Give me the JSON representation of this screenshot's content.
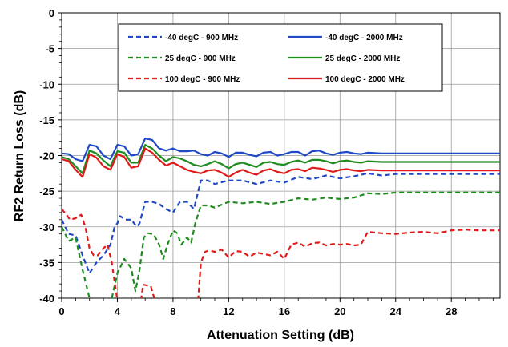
{
  "chart_data": {
    "type": "line",
    "xlabel": "Attenuation Setting (dB)",
    "ylabel": "RF2 Return Loss (dB)",
    "xlim": [
      0,
      31.5
    ],
    "ylim": [
      -40,
      0
    ],
    "xticks": [
      0,
      4,
      8,
      12,
      16,
      20,
      24,
      28
    ],
    "yticks": [
      0,
      -5,
      -10,
      -15,
      -20,
      -25,
      -30,
      -35,
      -40
    ],
    "grid": true,
    "legend_position": "top-center",
    "series": [
      {
        "name": "-40 degC - 900 MHz",
        "color": "#1f49c7",
        "dash": true,
        "x": [
          0,
          0.5,
          1,
          1.5,
          2,
          2.5,
          3,
          3.5,
          3.8,
          4,
          4.2,
          4.6,
          5,
          5.4,
          5.6,
          5.8,
          6,
          6.5,
          7,
          7.5,
          8,
          8.5,
          9,
          9.5,
          10,
          10.5,
          11,
          12,
          13,
          14,
          15,
          16,
          17,
          18,
          19,
          20,
          21,
          22,
          23,
          24,
          25,
          26,
          27,
          28,
          29,
          30,
          31.5
        ],
        "y": [
          -29,
          -31,
          -31.2,
          -34,
          -36.5,
          -35,
          -34,
          -32.5,
          -30,
          -29.5,
          -28.5,
          -29,
          -29,
          -30,
          -29.5,
          -28,
          -26.5,
          -26.5,
          -26.8,
          -27.5,
          -28,
          -26.5,
          -26.5,
          -27.5,
          -23.5,
          -23.5,
          -24,
          -23.5,
          -23.5,
          -24,
          -23.5,
          -23.8,
          -23,
          -23.3,
          -22.8,
          -23.2,
          -22.9,
          -22.5,
          -22.8,
          -22.6,
          -22.6,
          -22.6,
          -22.6,
          -22.6,
          -22.6,
          -22.6,
          -22.6
        ]
      },
      {
        "name": "-40 degC - 2000 MHz",
        "color": "#1f49c7",
        "dash": false,
        "x": [
          0,
          0.5,
          1,
          1.5,
          2,
          2.5,
          3,
          3.5,
          4,
          4.5,
          5,
          5.5,
          6,
          6.5,
          7,
          7.5,
          8,
          8.5,
          9,
          9.5,
          10,
          10.5,
          11,
          11.5,
          12,
          12.5,
          13,
          13.5,
          14,
          14.5,
          15,
          15.5,
          16,
          16.5,
          17,
          17.5,
          18,
          18.5,
          19,
          19.5,
          20,
          20.5,
          21,
          21.5,
          22,
          23,
          24,
          25,
          26,
          27,
          28,
          29,
          30,
          31.5
        ],
        "y": [
          -19.7,
          -19.8,
          -20.5,
          -20.8,
          -18.5,
          -18.7,
          -20,
          -20.5,
          -18.5,
          -18.7,
          -20,
          -19.8,
          -17.6,
          -17.8,
          -19,
          -19.3,
          -19,
          -19.4,
          -19.4,
          -19.3,
          -19.8,
          -20,
          -19.5,
          -19.7,
          -20.2,
          -19.6,
          -19.6,
          -19.9,
          -20.1,
          -19.6,
          -19.5,
          -20,
          -19.8,
          -19.5,
          -19.5,
          -20,
          -19.4,
          -19.3,
          -19.7,
          -19.9,
          -19.6,
          -19.5,
          -19.7,
          -19.8,
          -19.6,
          -19.7,
          -19.7,
          -19.7,
          -19.7,
          -19.7,
          -19.7,
          -19.7,
          -19.7,
          -19.7
        ]
      },
      {
        "name": "25 degC - 900 MHz",
        "color": "#1e8c1e",
        "dash": true,
        "x": [
          0,
          0.5,
          1,
          1.5,
          2,
          2.1,
          3.3,
          3.6,
          4,
          4.5,
          5,
          5.3,
          5.6,
          5.9,
          6.2,
          6.6,
          7,
          7.3,
          7.6,
          8,
          8.3,
          8.6,
          9,
          9.3,
          9.6,
          10,
          10.5,
          11,
          12,
          13,
          14,
          15,
          16,
          17,
          18,
          19,
          20,
          21,
          22,
          23,
          24,
          25,
          26,
          27,
          28,
          29,
          30,
          31.5
        ],
        "y": [
          -30,
          -32,
          -31.5,
          -36,
          -40,
          -40.5,
          -40.5,
          -40,
          -36.5,
          -34.5,
          -35.8,
          -39,
          -36,
          -31.5,
          -30.9,
          -31,
          -32.5,
          -34.5,
          -32.5,
          -30.5,
          -30.9,
          -32.5,
          -31.5,
          -32.2,
          -29.5,
          -27,
          -27,
          -27.3,
          -26.5,
          -26.7,
          -26.5,
          -26.8,
          -26.5,
          -26,
          -26.2,
          -25.9,
          -26.1,
          -25.9,
          -25.3,
          -25.4,
          -25.2,
          -25.2,
          -25.2,
          -25.2,
          -25.2,
          -25.2,
          -25.2,
          -25.2
        ]
      },
      {
        "name": "25 degC - 2000 MHz",
        "color": "#1e8c1e",
        "dash": false,
        "x": [
          0,
          0.5,
          1,
          1.5,
          2,
          2.5,
          3,
          3.5,
          4,
          4.5,
          5,
          5.5,
          6,
          6.5,
          7,
          7.5,
          8,
          8.5,
          9,
          9.5,
          10,
          10.5,
          11,
          11.5,
          12,
          12.5,
          13,
          13.5,
          14,
          14.5,
          15,
          15.5,
          16,
          16.5,
          17,
          17.5,
          18,
          18.5,
          19,
          19.5,
          20,
          20.5,
          21,
          21.5,
          22,
          23,
          24,
          25,
          26,
          27,
          28,
          29,
          30,
          31.5
        ],
        "y": [
          -20.2,
          -20.5,
          -21.5,
          -22.5,
          -19.3,
          -19.7,
          -20.7,
          -21.5,
          -19.4,
          -19.6,
          -21,
          -21,
          -18.5,
          -19,
          -20,
          -20.8,
          -20.2,
          -20.4,
          -20.8,
          -21.3,
          -21.5,
          -21.2,
          -20.8,
          -21.2,
          -21.8,
          -21.2,
          -21,
          -21.3,
          -21.6,
          -21,
          -20.9,
          -21.2,
          -21.3,
          -20.9,
          -20.7,
          -21,
          -20.6,
          -20.6,
          -20.8,
          -21.1,
          -20.8,
          -20.7,
          -20.9,
          -21,
          -20.8,
          -20.9,
          -20.9,
          -20.9,
          -20.9,
          -20.9,
          -20.9,
          -20.9,
          -20.9,
          -20.9
        ]
      },
      {
        "name": "100 degC - 900 MHz",
        "color": "#e01b1b",
        "dash": true,
        "segments": [
          {
            "x": [
              0,
              0.3,
              0.6,
              1,
              1.4,
              1.7,
              2,
              2.3,
              2.6,
              3,
              3.3,
              3.6,
              3.9,
              4.0
            ],
            "y": [
              -27.5,
              -28.2,
              -29,
              -28.8,
              -28.3,
              -30,
              -33,
              -34,
              -34,
              -33,
              -32.5,
              -35,
              -39,
              -40.3
            ]
          },
          {
            "x": [
              5.7,
              5.85,
              6.1,
              6.4,
              6.7
            ],
            "y": [
              -40.3,
              -38.1,
              -38.2,
              -38.3,
              -40.3
            ]
          },
          {
            "x": [
              9.8,
              10,
              10.3,
              10.6,
              11,
              11.5,
              12,
              12.5,
              13,
              13.5,
              14,
              14.5,
              15,
              15.5,
              16,
              16.5,
              17,
              17.5,
              18,
              18.5,
              19,
              19.5,
              20,
              20.5,
              21,
              21.5,
              22,
              23,
              24,
              25,
              26,
              27,
              28,
              29,
              30,
              31.5
            ],
            "y": [
              -40.3,
              -35,
              -33.5,
              -33.3,
              -33.5,
              -33.2,
              -34.3,
              -33.4,
              -33.5,
              -34.2,
              -33.6,
              -33.8,
              -34,
              -33.5,
              -34.5,
              -32.5,
              -32.2,
              -32.8,
              -32.3,
              -32.2,
              -32.6,
              -32.4,
              -32.5,
              -32.4,
              -32.6,
              -32.5,
              -30.7,
              -30.9,
              -31,
              -30.8,
              -30.7,
              -30.9,
              -30.5,
              -30.4,
              -30.5,
              -30.5
            ]
          }
        ]
      },
      {
        "name": "100 degC - 2000 MHz",
        "color": "#e01b1b",
        "dash": false,
        "x": [
          0,
          0.5,
          1,
          1.5,
          2,
          2.5,
          3,
          3.5,
          4,
          4.5,
          5,
          5.5,
          6,
          6.5,
          7,
          7.5,
          8,
          8.5,
          9,
          9.5,
          10,
          10.5,
          11,
          11.5,
          12,
          12.5,
          13,
          13.5,
          14,
          14.5,
          15,
          15.5,
          16,
          16.5,
          17,
          17.5,
          18,
          18.5,
          19,
          19.5,
          20,
          20.5,
          21,
          21.5,
          22,
          23,
          24,
          25,
          26,
          27,
          28,
          29,
          30,
          31.5
        ],
        "y": [
          -20.5,
          -20.8,
          -22,
          -23,
          -19.8,
          -20.3,
          -21.5,
          -22,
          -19.8,
          -20.2,
          -21.7,
          -21.5,
          -19,
          -19.6,
          -20.6,
          -21.4,
          -21,
          -21.5,
          -22,
          -22.3,
          -22.5,
          -22.1,
          -22,
          -22.4,
          -23,
          -22.4,
          -22,
          -22.4,
          -22.7,
          -22.1,
          -21.9,
          -22.3,
          -22.5,
          -22,
          -21.9,
          -22.2,
          -21.7,
          -21.8,
          -22,
          -22.3,
          -22,
          -21.9,
          -22.1,
          -22.2,
          -22,
          -22.1,
          -22.1,
          -22.1,
          -22.1,
          -22.1,
          -22.1,
          -22.1,
          -22.1,
          -22.1
        ]
      }
    ]
  }
}
